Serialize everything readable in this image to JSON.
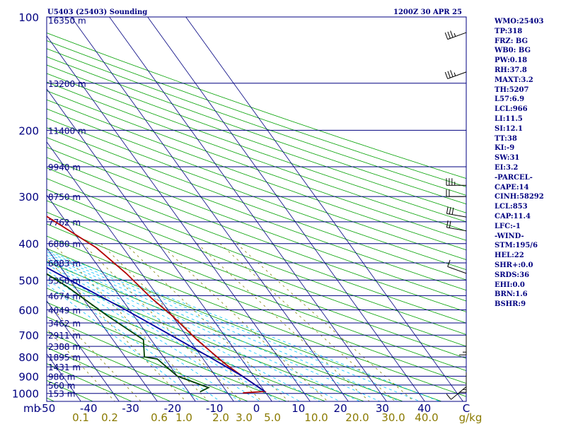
{
  "header": {
    "station": "U5403 (25403) Sounding",
    "time": "1200Z 30 APR 25"
  },
  "chart_data": {
    "type": "line",
    "title": "U5403 (25403) Sounding",
    "subtitle": "1200Z 30 APR 25",
    "x_unit_label": "mb",
    "mixing_ratio_unit": "g/kg",
    "pressure_levels": [
      100,
      200,
      300,
      400,
      500,
      600,
      700,
      800,
      900,
      1000
    ],
    "temperature_ticks": [
      -50,
      -40,
      -30,
      -20,
      -10,
      0,
      10,
      20,
      30,
      40,
      50
    ],
    "temperature_tick_labels": [
      "-50",
      "-40",
      "-30",
      "-20",
      "-10",
      "0",
      "10",
      "20",
      "30",
      "40",
      "C"
    ],
    "mixing_ratio_ticks": [
      0.1,
      0.2,
      0.6,
      1.0,
      2.0,
      3.0,
      5.0,
      10.0,
      20.0,
      30.0,
      40.0
    ],
    "mixing_ratio_tick_labels": [
      "0.1",
      "0.2",
      "0.6",
      "1.0",
      "2.0",
      "3.0",
      "5.0",
      "10.0",
      "20.0",
      "30.0",
      "40.0"
    ],
    "height_labels": [
      {
        "p": 102,
        "label": "16350 m"
      },
      {
        "p": 150,
        "label": "13200 m"
      },
      {
        "p": 200,
        "label": "11400 m"
      },
      {
        "p": 250,
        "label": "9940 m"
      },
      {
        "p": 300,
        "label": "8750 m"
      },
      {
        "p": 350,
        "label": "7762 m"
      },
      {
        "p": 400,
        "label": "6880 m"
      },
      {
        "p": 450,
        "label": "6083 m"
      },
      {
        "p": 500,
        "label": "5350 m"
      },
      {
        "p": 550,
        "label": "4674 m"
      },
      {
        "p": 600,
        "label": "4049 m"
      },
      {
        "p": 650,
        "label": "3462 m"
      },
      {
        "p": 700,
        "label": "2911 m"
      },
      {
        "p": 750,
        "label": "2388 m"
      },
      {
        "p": 800,
        "label": "1895 m"
      },
      {
        "p": 850,
        "label": "1431 m"
      },
      {
        "p": 900,
        "label": "986 m"
      },
      {
        "p": 950,
        "label": "560 m"
      },
      {
        "p": 1000,
        "label": "153 m"
      }
    ],
    "series": [
      {
        "name": "temperature",
        "color": "#b40000",
        "points": [
          [
            -6,
            997
          ],
          [
            0,
            988
          ],
          [
            -3,
            900
          ],
          [
            -5,
            840
          ],
          [
            -6,
            800
          ],
          [
            -8,
            720
          ],
          [
            -10,
            620
          ],
          [
            -12,
            560
          ],
          [
            -14,
            480
          ],
          [
            -17,
            410
          ],
          [
            -25,
            330
          ],
          [
            -30,
            305
          ],
          [
            -33,
            280
          ],
          [
            -31,
            260
          ],
          [
            -33,
            235
          ],
          [
            -42,
            190
          ],
          [
            -58,
            110
          ],
          [
            -62,
            100
          ]
        ]
      },
      {
        "name": "dewpoint",
        "color": "#004000",
        "points": [
          [
            -17,
            990
          ],
          [
            -14,
            965
          ],
          [
            -20,
            900
          ],
          [
            -22,
            810
          ],
          [
            -25,
            800
          ],
          [
            -22,
            720
          ],
          [
            -27,
            620
          ],
          [
            -32,
            520
          ],
          [
            -40,
            420
          ],
          [
            -44,
            335
          ],
          [
            -46,
            310
          ],
          [
            -44,
            295
          ],
          [
            -38,
            265
          ],
          [
            -35,
            240
          ],
          [
            -33,
            225
          ],
          [
            -40,
            150
          ],
          [
            -50,
            100
          ]
        ]
      },
      {
        "name": "parcel",
        "color": "#0000a0",
        "points": [
          [
            0,
            988
          ],
          [
            -3,
            900
          ],
          [
            -8,
            800
          ],
          [
            -14,
            700
          ],
          [
            -21,
            600
          ],
          [
            -30,
            500
          ],
          [
            -41,
            400
          ],
          [
            -55,
            300
          ],
          [
            -73,
            200
          ],
          [
            -85,
            150
          ],
          [
            -95,
            120
          ]
        ]
      }
    ],
    "wind_barbs": [
      {
        "p": 110,
        "direction": 250,
        "speed": 25
      },
      {
        "p": 140,
        "direction": 250,
        "speed": 25
      },
      {
        "p": 280,
        "direction": 270,
        "speed": 25
      },
      {
        "p": 300,
        "direction": 270,
        "speed": 20
      },
      {
        "p": 340,
        "direction": 280,
        "speed": 30
      },
      {
        "p": 370,
        "direction": 280,
        "speed": 20
      },
      {
        "p": 480,
        "direction": 290,
        "speed": 10
      },
      {
        "p": 700,
        "direction": 180,
        "speed": 5
      },
      {
        "p": 880,
        "direction": 180,
        "speed": 5
      },
      {
        "p": 960,
        "direction": 230,
        "speed": 10
      }
    ]
  },
  "indices": [
    "WMO:25403",
    "TP:318",
    "FRZ: BG",
    "WB0: BG",
    "PW:0.18",
    "RH:37.8",
    "MAXT:3.2",
    "TH:5207",
    "L57:6.9",
    "LCL:966",
    "LI:11.5",
    "SI:12.1",
    "TT:38",
    "KI:-9",
    "SW:31",
    "EI:3.2",
    "-PARCEL-",
    "CAPE:14",
    "CINH:58292",
    "LCL:853",
    "CAP:11.4",
    "LFC:-1",
    "-WIND-",
    "STM:195/6",
    "HEL:22",
    "SHR+:0.0",
    "SRDS:36",
    "EHI:0.0",
    "BRN:1.6",
    "BSHR:9"
  ],
  "colors": {
    "isobar": "#000080",
    "isotherm": "#000080",
    "dry_adiabat": "#00a000",
    "moist_adiabat": "#00c0ff",
    "mixing_ratio": "#808000",
    "label": "#000080"
  }
}
